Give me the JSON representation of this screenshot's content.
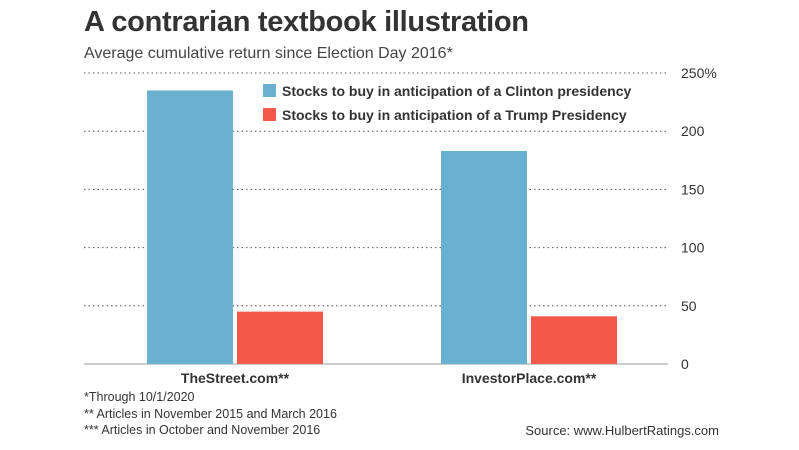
{
  "chart_data": {
    "type": "bar",
    "title": "A contrarian textbook illustration",
    "subtitle": "Average cumulative return since Election Day 2016*",
    "categories": [
      "TheStreet.com**",
      "InvestorPlace.com**"
    ],
    "series": [
      {
        "name": "Stocks to buy in anticipation of a Clinton presidency",
        "color": "#6ab0d0",
        "values": [
          235,
          183
        ]
      },
      {
        "name": "Stocks to buy in anticipation of a Trump Presidency",
        "color": "#f4584a",
        "values": [
          45,
          41
        ]
      }
    ],
    "ylim": [
      0,
      250
    ],
    "yticks": [
      {
        "value": 0,
        "label": "0"
      },
      {
        "value": 50,
        "label": "50"
      },
      {
        "value": 100,
        "label": "100"
      },
      {
        "value": 150,
        "label": "150"
      },
      {
        "value": 200,
        "label": "200"
      },
      {
        "value": 250,
        "label": "250%"
      }
    ],
    "grid": true,
    "legend_position": "top-right"
  },
  "footnotes": [
    "*Through 10/1/2020",
    "** Articles in November 2015 and March 2016",
    "*** Articles in October and November 2016"
  ],
  "source": "Source: www.HulbertRatings.com"
}
